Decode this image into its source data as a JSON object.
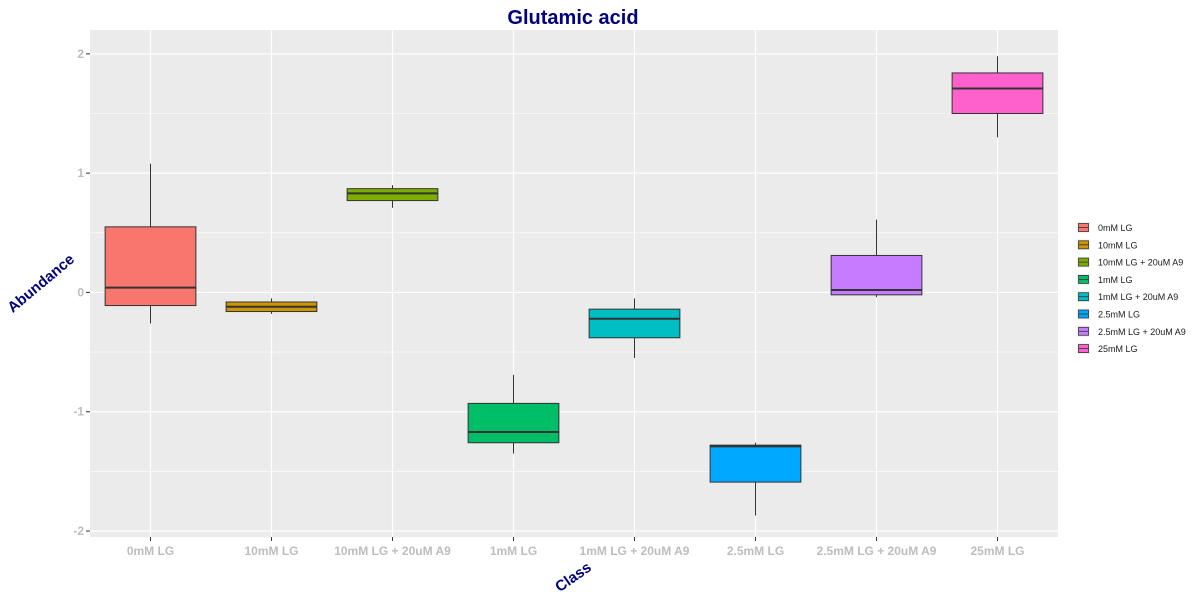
{
  "chart_data": {
    "type": "box",
    "title": "Glutamic acid",
    "xlabel": "Class",
    "ylabel": "Abundance",
    "categories": [
      "0mM LG",
      "10mM LG",
      "10mM LG + 20uM A9",
      "1mM LG",
      "1mM LG + 20uM A9",
      "2.5mM LG",
      "2.5mM LG + 20uM A9",
      "25mM LG"
    ],
    "ylim": [
      -2.05,
      2.2
    ],
    "yticks": [
      -2,
      -1,
      0,
      1,
      2
    ],
    "grid": true,
    "legend_position": "right",
    "boxes": [
      {
        "category": "0mM LG",
        "min": -0.26,
        "q1": -0.11,
        "median": 0.04,
        "q3": 0.55,
        "max": 1.08,
        "color": "#F8766D"
      },
      {
        "category": "10mM LG",
        "min": -0.18,
        "q1": -0.16,
        "median": -0.12,
        "q3": -0.08,
        "max": -0.05,
        "color": "#CD9600"
      },
      {
        "category": "10mM LG + 20uM A9",
        "min": 0.71,
        "q1": 0.77,
        "median": 0.83,
        "q3": 0.87,
        "max": 0.9,
        "color": "#7CAE00"
      },
      {
        "category": "1mM LG",
        "min": -1.35,
        "q1": -1.26,
        "median": -1.17,
        "q3": -0.93,
        "max": -0.69,
        "color": "#00BE67"
      },
      {
        "category": "1mM LG + 20uM A9",
        "min": -0.55,
        "q1": -0.38,
        "median": -0.22,
        "q3": -0.14,
        "max": -0.05,
        "color": "#00BFC4"
      },
      {
        "category": "2.5mM LG",
        "min": -1.87,
        "q1": -1.59,
        "median": -1.29,
        "q3": -1.28,
        "max": -1.26,
        "color": "#00A9FF"
      },
      {
        "category": "2.5mM LG + 20uM A9",
        "min": -0.04,
        "q1": -0.02,
        "median": 0.02,
        "q3": 0.31,
        "max": 0.61,
        "color": "#C77CFF"
      },
      {
        "category": "25mM LG",
        "min": 1.3,
        "q1": 1.5,
        "median": 1.71,
        "q3": 1.84,
        "max": 1.98,
        "color": "#FF61CC"
      }
    ],
    "legend": [
      "0mM LG",
      "10mM LG",
      "10mM LG + 20uM A9",
      "1mM LG",
      "1mM LG + 20uM A9",
      "2.5mM LG",
      "2.5mM LG + 20uM A9",
      "25mM LG"
    ],
    "title_color": "#000080",
    "panel_color": "#EBEBEB"
  }
}
